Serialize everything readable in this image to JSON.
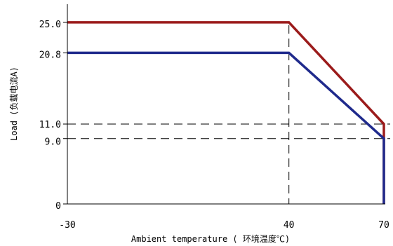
{
  "chart_data": {
    "type": "line",
    "title": "",
    "xlabel": "Ambient temperature ( 环境温度℃)",
    "ylabel": "Load (负载电流A)",
    "xlim": [
      -30,
      70
    ],
    "ylim": [
      0,
      27.5
    ],
    "x_ticks": [
      {
        "value": -30,
        "label": "-30"
      },
      {
        "value": 40,
        "label": "40"
      },
      {
        "value": 70,
        "label": "70"
      }
    ],
    "y_ticks": [
      {
        "value": 0,
        "label": "0"
      },
      {
        "value": 9.0,
        "label": "9.0"
      },
      {
        "value": 11.0,
        "label": "11.0"
      },
      {
        "value": 20.8,
        "label": "20.8"
      },
      {
        "value": 25.0,
        "label": "25.0"
      }
    ],
    "series": [
      {
        "color": "#9b1b1b",
        "points": [
          [
            -30,
            25.0
          ],
          [
            40,
            25.0
          ],
          [
            70,
            11.0
          ],
          [
            70,
            0
          ]
        ]
      },
      {
        "color": "#1f2a8c",
        "points": [
          [
            -30,
            20.8
          ],
          [
            40,
            20.8
          ],
          [
            70,
            9.0
          ],
          [
            70,
            0
          ]
        ]
      }
    ],
    "reference_lines": [
      {
        "axis": "y",
        "value": 11.0,
        "style": "dashed"
      },
      {
        "axis": "y",
        "value": 9.0,
        "style": "dashed"
      },
      {
        "axis": "x",
        "value": 40,
        "style": "dashed"
      }
    ],
    "grid": false,
    "legend": "none"
  }
}
